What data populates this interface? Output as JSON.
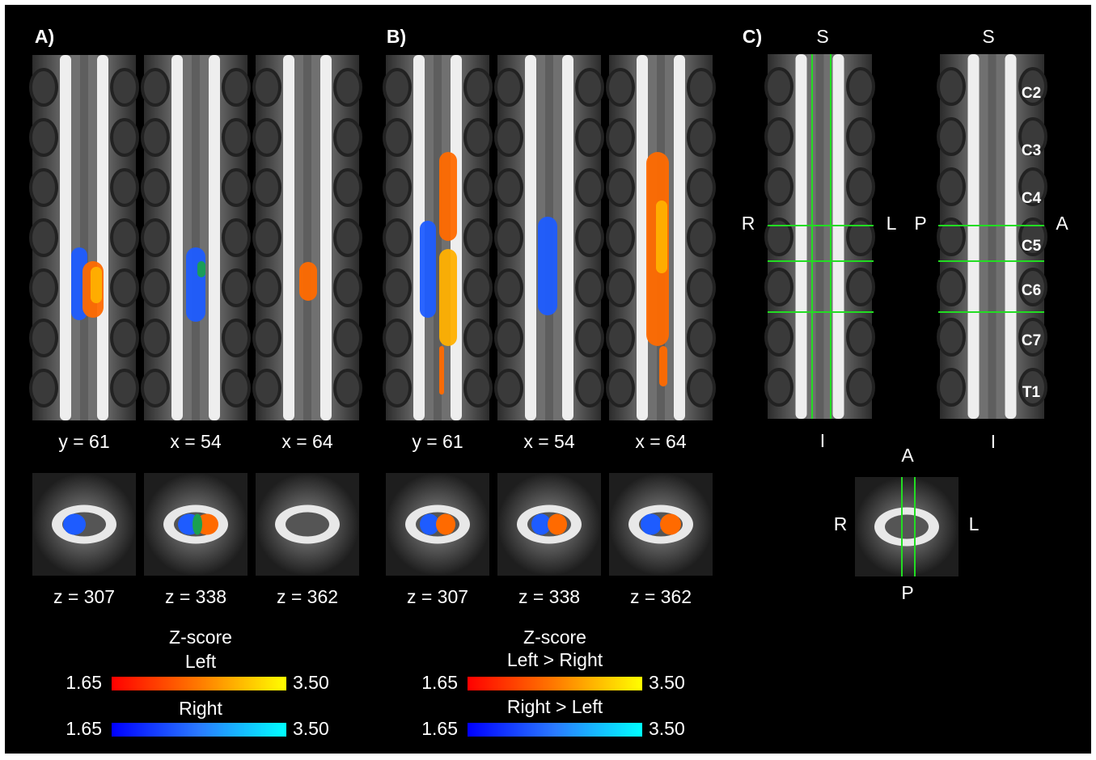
{
  "panel_a": {
    "label": "A)",
    "sagittal_labels": [
      "y = 61",
      "x = 54",
      "x = 64"
    ],
    "axial_labels": [
      "z = 307",
      "z = 338",
      "z = 362"
    ],
    "legend": {
      "title": "Z-score",
      "scales": [
        {
          "name": "Left",
          "min": "1.65",
          "max": "3.50"
        },
        {
          "name": "Right",
          "min": "1.65",
          "max": "3.50"
        }
      ]
    }
  },
  "panel_b": {
    "label": "B)",
    "sagittal_labels": [
      "y = 61",
      "x = 54",
      "x = 64"
    ],
    "axial_labels": [
      "z = 307",
      "z = 338",
      "z = 362"
    ],
    "legend": {
      "title": "Z-score",
      "scales": [
        {
          "name": "Left > Right",
          "min": "1.65",
          "max": "3.50"
        },
        {
          "name": "Right > Left",
          "min": "1.65",
          "max": "3.50"
        }
      ]
    }
  },
  "panel_c": {
    "label": "C)",
    "coronal": {
      "top": "S",
      "bottom": "I",
      "left": "R",
      "right": "L"
    },
    "sagittal": {
      "top": "S",
      "bottom": "I",
      "left": "P",
      "right": "A",
      "levels": [
        "C2",
        "C3",
        "C4",
        "C5",
        "C6",
        "C7",
        "T1"
      ]
    },
    "axial": {
      "top": "A",
      "bottom": "P",
      "left": "R",
      "right": "L"
    }
  }
}
